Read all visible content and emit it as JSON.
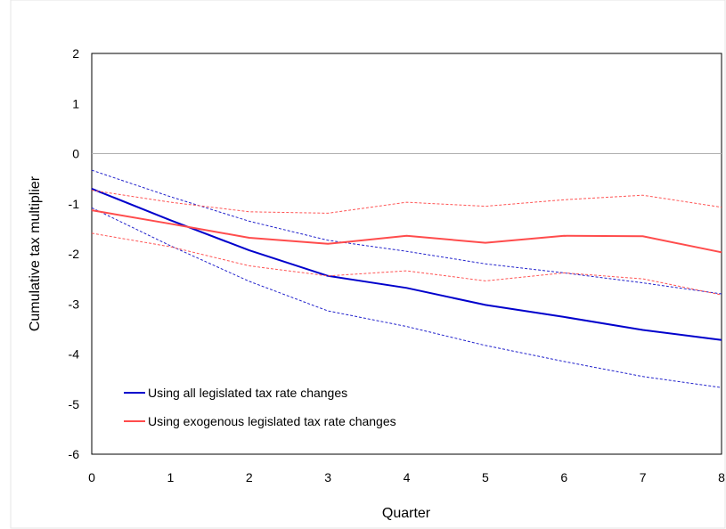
{
  "chart_data": {
    "type": "line",
    "title": "",
    "xlabel": "Quarter",
    "ylabel": "Cumulative tax multiplier",
    "xlim": [
      0,
      8
    ],
    "ylim": [
      -6,
      2
    ],
    "x": [
      0,
      1,
      2,
      3,
      4,
      5,
      6,
      7,
      8
    ],
    "xticks": [
      0,
      1,
      2,
      3,
      4,
      5,
      6,
      7,
      8
    ],
    "yticks": [
      2,
      1,
      0,
      -1,
      -2,
      -3,
      -4,
      -5,
      -6
    ],
    "zero_line": true,
    "grid": false,
    "legend_position": "bottom-left",
    "series": [
      {
        "name": "Using all legislated tax rate changes",
        "values": [
          -0.7,
          -1.33,
          -1.93,
          -2.44,
          -2.68,
          -3.02,
          -3.26,
          -3.52,
          -3.72
        ],
        "color": "#0000cc",
        "dash": "solid"
      },
      {
        "name": "",
        "values": [
          -0.33,
          -0.86,
          -1.35,
          -1.73,
          -1.95,
          -2.2,
          -2.38,
          -2.58,
          -2.8
        ],
        "color": "#2222cc",
        "dash": "dashed"
      },
      {
        "name": "",
        "values": [
          -1.08,
          -1.84,
          -2.55,
          -3.14,
          -3.45,
          -3.83,
          -4.15,
          -4.45,
          -4.67
        ],
        "color": "#2222cc",
        "dash": "dashed"
      },
      {
        "name": "Using exogenous legislated tax rate changes",
        "values": [
          -1.13,
          -1.4,
          -1.68,
          -1.8,
          -1.64,
          -1.78,
          -1.64,
          -1.65,
          -1.97
        ],
        "color": "#ff4c4c",
        "dash": "solid"
      },
      {
        "name": "",
        "values": [
          -0.73,
          -0.97,
          -1.16,
          -1.19,
          -0.97,
          -1.05,
          -0.92,
          -0.83,
          -1.07
        ],
        "color": "#ff5555",
        "dash": "dashed"
      },
      {
        "name": "",
        "values": [
          -1.59,
          -1.86,
          -2.24,
          -2.44,
          -2.34,
          -2.54,
          -2.38,
          -2.5,
          -2.82
        ],
        "color": "#ff5555",
        "dash": "dashed"
      }
    ]
  }
}
